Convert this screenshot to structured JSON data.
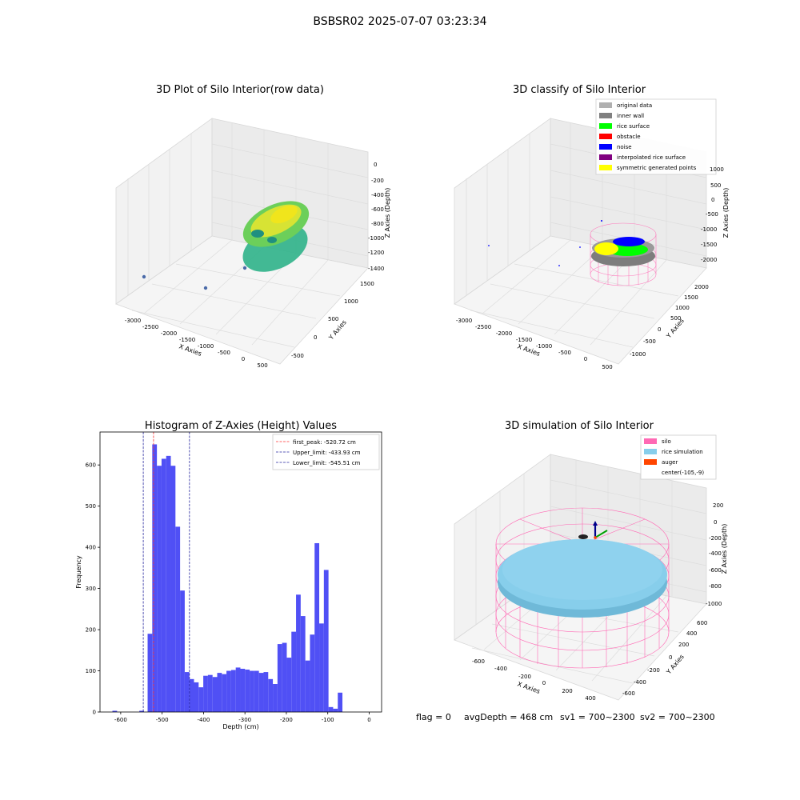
{
  "figure": {
    "suptitle": "BSBSR02 2025-07-07 03:23:34",
    "bottom_text": {
      "flag": "flag = 0",
      "avg": "avgDepth = 468 cm",
      "sv1": "sv1 = 700~2300",
      "sv2": "sv2 = 700~2300"
    }
  },
  "colors": {
    "hist_bar": "#5050f5",
    "first_peak": "#ff3333",
    "limits": "#2a2aa0",
    "silo": "#ff69b4",
    "rice": "#87ceeb",
    "auger": "#ff4500",
    "inner_wall": "#808080",
    "rice_surface": "#00ff00",
    "noise": "#0000ff",
    "symmetric": "#ffff00"
  },
  "chart_data": [
    {
      "type": "scatter",
      "title": "3D Plot of Silo Interior(row data)",
      "xlabel": "X Axies",
      "ylabel": "Y Axies",
      "zlabel": "Z Axies (Depth)",
      "x_ticks": [
        "-3000",
        "-2500",
        "-2000",
        "-1500",
        "-1000",
        "-500",
        "0",
        "500"
      ],
      "y_ticks": [
        "-500",
        "0",
        "500",
        "1000",
        "1500"
      ],
      "z_ticks": [
        "0",
        "-200",
        "-400",
        "-600",
        "-800",
        "-1000",
        "-1200",
        "-1400"
      ]
    },
    {
      "type": "scatter",
      "title": "3D classify of Silo Interior",
      "xlabel": "X Axies",
      "ylabel": "Y Axies",
      "zlabel": "Z Axies (Depth)",
      "x_ticks": [
        "-3000",
        "-2500",
        "-2000",
        "-1500",
        "-1000",
        "-500",
        "0",
        "500"
      ],
      "y_ticks": [
        "-1000",
        "-500",
        "0",
        "500",
        "1000",
        "1500",
        "2000"
      ],
      "z_ticks": [
        "1000",
        "500",
        "0",
        "-500",
        "-1000",
        "-1500",
        "-2000"
      ],
      "legend": [
        "original data",
        "inner wall",
        "rice surface",
        "obstacle",
        "noise",
        "interpolated rice surface",
        "symmetric generated points"
      ],
      "legend_colors": [
        "#b0b0b0",
        "#808080",
        "#00ff00",
        "#ff0000",
        "#0000ff",
        "#800080",
        "#ffff00"
      ]
    },
    {
      "type": "bar",
      "title": "Histogram of Z-Axies (Height) Values",
      "xlabel": "Depth (cm)",
      "ylabel": "Frequency",
      "xlim": [
        -650,
        30
      ],
      "ylim": [
        0,
        680
      ],
      "x_ticks": [
        -600,
        -500,
        -400,
        -300,
        -200,
        -100,
        0
      ],
      "y_ticks": [
        0,
        100,
        200,
        300,
        400,
        500,
        600
      ],
      "bin_width": 11.2,
      "bin_start": -535.0,
      "values": [
        190,
        650,
        598,
        615,
        622,
        598,
        450,
        295,
        97,
        80,
        72,
        60,
        88,
        90,
        85,
        95,
        92,
        100,
        102,
        108,
        105,
        103,
        100,
        100,
        95,
        97,
        80,
        68,
        165,
        168,
        132,
        195,
        285,
        233,
        125,
        188,
        410,
        215,
        345,
        12,
        8,
        47
      ],
      "stray_bins": [
        [
          -620,
          3
        ],
        [
          -555,
          3
        ]
      ],
      "lines": [
        {
          "label": "first_peak: -520.72 cm",
          "x": -520.72
        },
        {
          "label": "Upper_limit: -433.93 cm",
          "x": -433.93
        },
        {
          "label": "Lower_limit: -545.51 cm",
          "x": -545.51
        }
      ]
    },
    {
      "type": "scatter",
      "title": "3D simulation of Silo Interior",
      "xlabel": "X Axies",
      "ylabel": "Y Axies",
      "zlabel": "Z Axies (Depth)",
      "x_ticks": [
        "-600",
        "-400",
        "-200",
        "0",
        "200",
        "400"
      ],
      "y_ticks": [
        "-600",
        "-400",
        "-200",
        "0",
        "200",
        "400",
        "600"
      ],
      "z_ticks": [
        "200",
        "0",
        "-200",
        "-400",
        "-600",
        "-800",
        "-1000"
      ],
      "legend": [
        "silo",
        "rice simulation",
        "auger",
        "center(-105,-9)"
      ],
      "legend_colors": [
        "#ff69b4",
        "#87ceeb",
        "#ff4500",
        "none"
      ]
    }
  ]
}
